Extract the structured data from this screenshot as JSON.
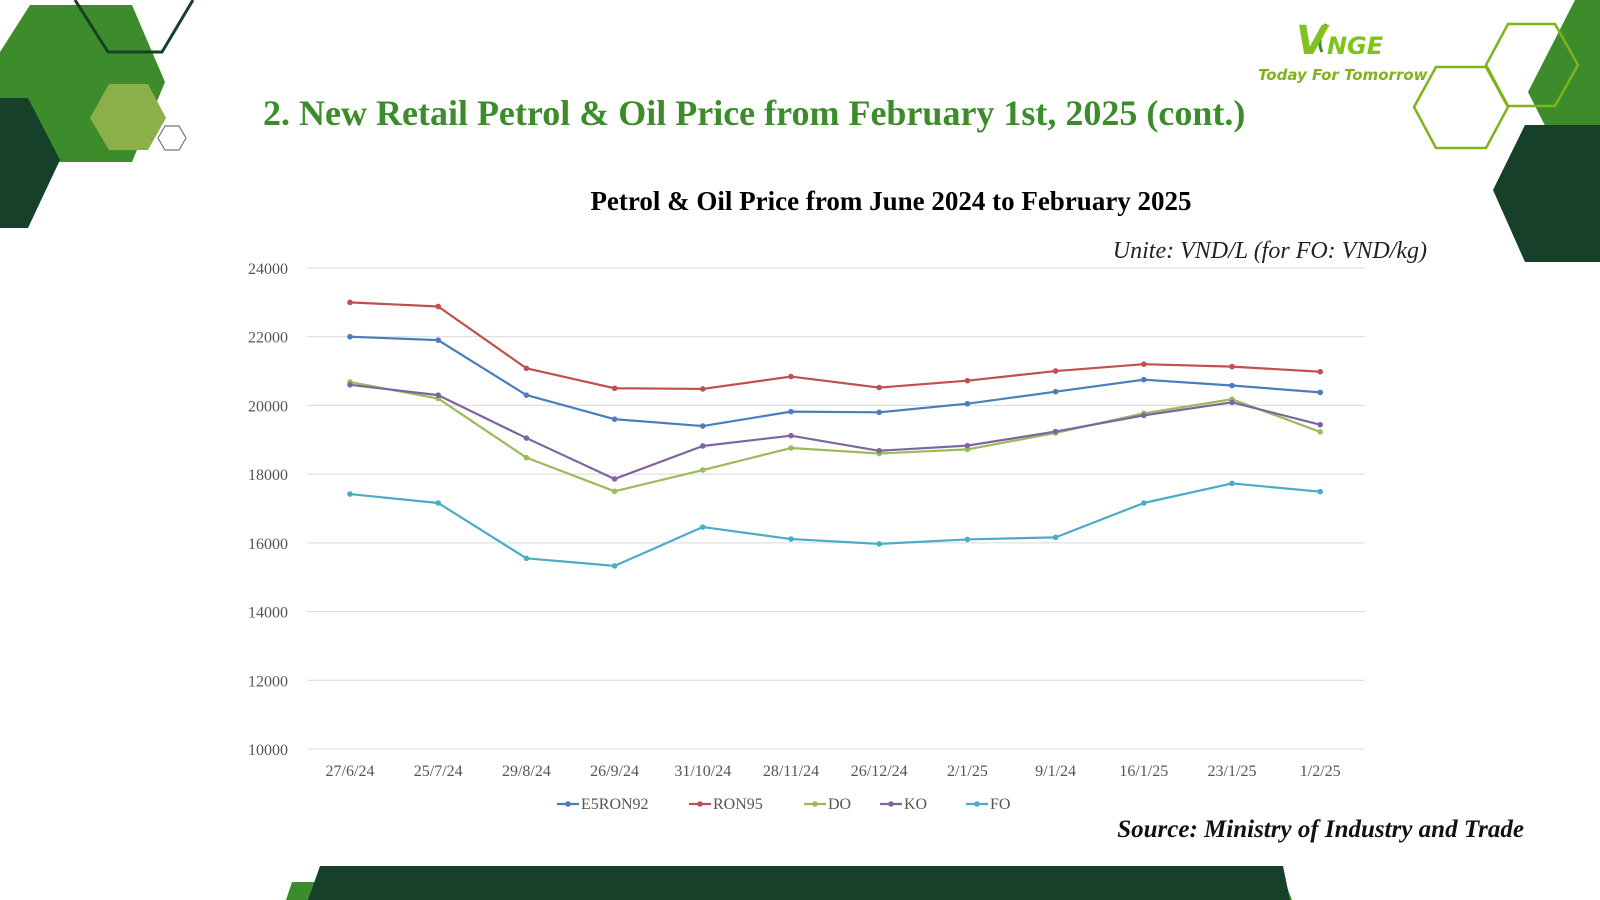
{
  "slide": {
    "title": "2. New Retail Petrol & Oil Price from February 1st, 2025 (cont.)",
    "logo_brand_initial": "V",
    "logo_brand_rest": "NGE",
    "logo_tagline": "Today For Tomorrow",
    "unit_note": "Unite: VND/L (for FO: VND/kg)",
    "source_note": "Source: Ministry of Industry and Trade"
  },
  "colors": {
    "title": "#3d8c2b",
    "dark_green": "#17402a",
    "mid_green": "#3d8c2b",
    "light_green": "#8bb04a",
    "outline_green": "#7fb21c"
  },
  "chart_data": {
    "type": "line",
    "title": "Petrol & Oil Price from June 2024 to February 2025",
    "xlabel": "",
    "ylabel": "",
    "categories": [
      "27/6/24",
      "25/7/24",
      "29/8/24",
      "26/9/24",
      "31/10/24",
      "28/11/24",
      "26/12/24",
      "2/1/25",
      "9/1/24",
      "16/1/25",
      "23/1/25",
      "1/2/25"
    ],
    "ylim": [
      10000,
      24000
    ],
    "yticks": [
      10000,
      12000,
      14000,
      16000,
      18000,
      20000,
      22000,
      24000
    ],
    "grid": true,
    "legend_position": "bottom",
    "series": [
      {
        "name": "E5RON92",
        "color": "#4a7ebb",
        "values": [
          22000,
          21900,
          20300,
          19600,
          19400,
          19820,
          19800,
          20050,
          20400,
          20750,
          20580,
          20380
        ]
      },
      {
        "name": "RON95",
        "color": "#c0504d",
        "values": [
          23000,
          22880,
          21080,
          20500,
          20480,
          20840,
          20520,
          20720,
          21000,
          21200,
          21130,
          20980
        ]
      },
      {
        "name": "DO",
        "color": "#9bbb59",
        "values": [
          20680,
          20200,
          18480,
          17500,
          18120,
          18760,
          18600,
          18720,
          19200,
          19770,
          20180,
          19230
        ]
      },
      {
        "name": "KO",
        "color": "#8064a2",
        "values": [
          20600,
          20300,
          19050,
          17860,
          18820,
          19120,
          18680,
          18830,
          19240,
          19710,
          20090,
          19440
        ]
      },
      {
        "name": "FO",
        "color": "#4bacc6",
        "values": [
          17420,
          17160,
          15550,
          15330,
          16460,
          16110,
          15970,
          16100,
          16160,
          17160,
          17730,
          17490
        ]
      }
    ]
  }
}
